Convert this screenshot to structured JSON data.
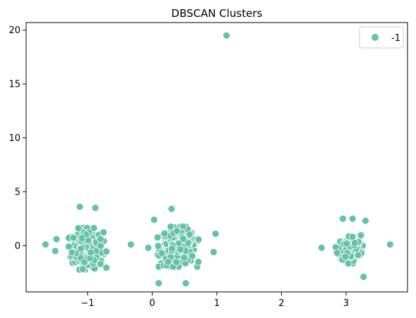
{
  "chart_data": {
    "type": "scatter",
    "title": "DBSCAN Clusters",
    "xlabel": "",
    "ylabel": "",
    "xlim": [
      -1.95,
      3.95
    ],
    "ylim": [
      -4.3,
      20.7
    ],
    "x_ticks": [
      -1,
      0,
      1,
      2,
      3
    ],
    "x_tick_labels": [
      "−1",
      "0",
      "1",
      "2",
      "3"
    ],
    "y_ticks": [
      0,
      5,
      10,
      15,
      20
    ],
    "y_tick_labels": [
      "0",
      "5",
      "10",
      "15",
      "20"
    ],
    "grid": false,
    "legend": {
      "position": "top-right",
      "entries": [
        "-1"
      ]
    },
    "series": [
      {
        "name": "-1",
        "color": "#66c2a5",
        "clusters": [
          {
            "center": [
              -1.0,
              -0.3
            ],
            "spread": [
              0.22,
              1.35
            ],
            "count": 260
          },
          {
            "center": [
              0.4,
              -0.1
            ],
            "spread": [
              0.24,
              1.3
            ],
            "count": 300
          },
          {
            "center": [
              3.05,
              -0.3
            ],
            "spread": [
              0.16,
              0.95
            ],
            "count": 140
          }
        ],
        "points": [
          [
            1.15,
            19.5
          ],
          [
            -1.65,
            0.1
          ],
          [
            -0.33,
            0.1
          ],
          [
            3.68,
            0.1
          ],
          [
            -1.48,
            0.6
          ],
          [
            -1.5,
            -0.5
          ],
          [
            -1.12,
            3.6
          ],
          [
            -0.88,
            3.5
          ],
          [
            0.03,
            2.4
          ],
          [
            0.3,
            3.4
          ],
          [
            0.1,
            -3.5
          ],
          [
            0.52,
            -3.5
          ],
          [
            0.98,
            1.1
          ],
          [
            0.95,
            -0.6
          ],
          [
            -0.06,
            -0.2
          ],
          [
            2.62,
            -0.2
          ],
          [
            3.27,
            -2.9
          ],
          [
            3.3,
            2.3
          ],
          [
            3.1,
            2.5
          ],
          [
            2.95,
            2.5
          ]
        ]
      }
    ]
  }
}
